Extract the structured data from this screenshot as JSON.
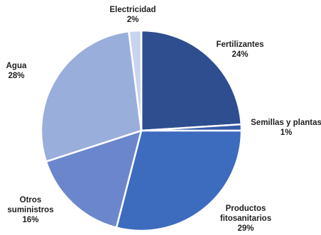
{
  "chart_data": {
    "type": "pie",
    "title": "",
    "slices": [
      {
        "label_lines": [
          "Fertilizantes"
        ],
        "pct_label": "24%",
        "value": 24,
        "color": "#2E4E8F"
      },
      {
        "label_lines": [
          "Semillas y plantas"
        ],
        "pct_label": "1%",
        "value": 1,
        "color": "#3359A8"
      },
      {
        "label_lines": [
          "Productos",
          "fitosanitarios"
        ],
        "pct_label": "29%",
        "value": 29,
        "color": "#3D6BBE"
      },
      {
        "label_lines": [
          "Otros",
          "suministros"
        ],
        "pct_label": "16%",
        "value": 16,
        "color": "#6B86CC"
      },
      {
        "label_lines": [
          "Agua"
        ],
        "pct_label": "28%",
        "value": 28,
        "color": "#9AAEDC"
      },
      {
        "label_lines": [
          "Electricidad"
        ],
        "pct_label": "2%",
        "value": 2,
        "color": "#C9D4EE"
      }
    ],
    "start_angle_deg": 0,
    "direction": "clockwise",
    "legend": "none"
  }
}
